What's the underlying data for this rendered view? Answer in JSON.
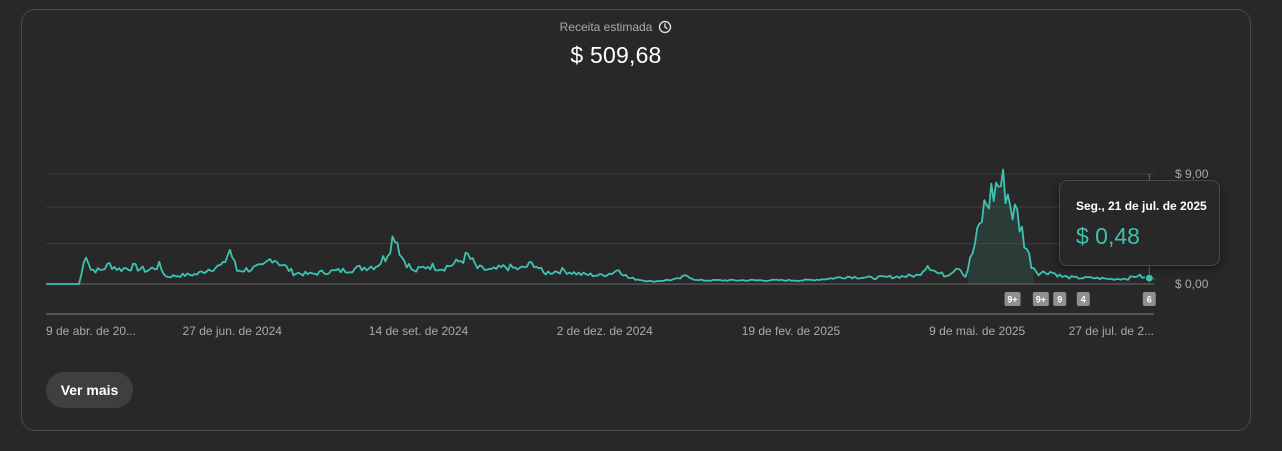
{
  "metric": {
    "label": "Receita estimada",
    "value": "$ 509,68",
    "icon": "clock-icon"
  },
  "tooltip": {
    "date": "Seg., 21 de jul. de 2025",
    "value": "$ 0,48"
  },
  "more_button": {
    "label": "Ver mais"
  },
  "colors": {
    "line": "#3ec2b0",
    "grid": "#3d3d3d",
    "axis": "#555555",
    "badge": "#8f8f8f"
  },
  "chart_data": {
    "type": "line",
    "title": "",
    "xlabel": "",
    "ylabel": "",
    "start_date": "2024-04-09",
    "end_date": "2025-07-23",
    "ylim": [
      0,
      9
    ],
    "grid": true,
    "y_tick_labels": [
      {
        "value": 9,
        "label": "$ 9,00"
      },
      {
        "value": 0,
        "label": "$ 0,00"
      }
    ],
    "x_tick_labels": [
      {
        "date": "2024-04-09",
        "label": "9 de abr. de 20..."
      },
      {
        "date": "2024-06-27",
        "label": "27 de jun. de 2024"
      },
      {
        "date": "2024-09-14",
        "label": "14 de set. de 2024"
      },
      {
        "date": "2024-12-02",
        "label": "2 de dez. de 2024"
      },
      {
        "date": "2025-02-19",
        "label": "19 de fev. de 2025"
      },
      {
        "date": "2025-05-09",
        "label": "9 de mai. de 2025"
      },
      {
        "date": "2025-07-27",
        "label": "27 de jul. de 2..."
      }
    ],
    "highlight": {
      "date": "2025-07-21",
      "value": 0.48
    },
    "series": [
      {
        "keyframes": [
          [
            "2024-04-09",
            0
          ],
          [
            "2024-04-23",
            0
          ],
          [
            "2024-04-24",
            0.8
          ],
          [
            "2024-04-26",
            2.6
          ],
          [
            "2024-04-28",
            1.2
          ],
          [
            "2024-05-02",
            1.1
          ],
          [
            "2024-05-06",
            1.6
          ],
          [
            "2024-05-10",
            1.2
          ],
          [
            "2024-05-16",
            1.4
          ],
          [
            "2024-05-22",
            1.1
          ],
          [
            "2024-05-27",
            1.5
          ],
          [
            "2024-05-30",
            0.6
          ],
          [
            "2024-06-05",
            0.7
          ],
          [
            "2024-06-12",
            0.8
          ],
          [
            "2024-06-18",
            1.3
          ],
          [
            "2024-06-23",
            1.5
          ],
          [
            "2024-06-26",
            2.8
          ],
          [
            "2024-06-29",
            1.1
          ],
          [
            "2024-07-04",
            1.2
          ],
          [
            "2024-07-10",
            1.4
          ],
          [
            "2024-07-14",
            2.2
          ],
          [
            "2024-07-18",
            1.6
          ],
          [
            "2024-07-23",
            0.9
          ],
          [
            "2024-07-30",
            0.8
          ],
          [
            "2024-08-06",
            1.0
          ],
          [
            "2024-08-13",
            1.1
          ],
          [
            "2024-08-20",
            1.3
          ],
          [
            "2024-08-27",
            1.5
          ],
          [
            "2024-08-31",
            2.2
          ],
          [
            "2024-09-04",
            4.2
          ],
          [
            "2024-09-07",
            2.2
          ],
          [
            "2024-09-12",
            1.0
          ],
          [
            "2024-09-18",
            1.5
          ],
          [
            "2024-09-24",
            1.3
          ],
          [
            "2024-09-30",
            1.7
          ],
          [
            "2024-10-05",
            2.3
          ],
          [
            "2024-10-09",
            1.3
          ],
          [
            "2024-10-15",
            1.1
          ],
          [
            "2024-10-21",
            1.4
          ],
          [
            "2024-10-27",
            1.2
          ],
          [
            "2024-11-02",
            1.7
          ],
          [
            "2024-11-06",
            0.9
          ],
          [
            "2024-11-14",
            1.1
          ],
          [
            "2024-11-22",
            0.8
          ],
          [
            "2024-11-30",
            0.7
          ],
          [
            "2024-12-05",
            0.9
          ],
          [
            "2024-12-08",
            1.2
          ],
          [
            "2024-12-12",
            0.5
          ],
          [
            "2024-12-22",
            0.2
          ],
          [
            "2025-01-02",
            0.4
          ],
          [
            "2025-01-06",
            0.7
          ],
          [
            "2025-01-10",
            0.3
          ],
          [
            "2025-01-25",
            0.3
          ],
          [
            "2025-02-10",
            0.3
          ],
          [
            "2025-02-25",
            0.3
          ],
          [
            "2025-03-05",
            0.4
          ],
          [
            "2025-03-15",
            0.6
          ],
          [
            "2025-03-25",
            0.5
          ],
          [
            "2025-04-05",
            0.6
          ],
          [
            "2025-04-14",
            0.7
          ],
          [
            "2025-04-18",
            1.6
          ],
          [
            "2025-04-22",
            0.9
          ],
          [
            "2025-04-26",
            0.7
          ],
          [
            "2025-05-01",
            1.5
          ],
          [
            "2025-05-04",
            0.6
          ],
          [
            "2025-05-08",
            3.2
          ],
          [
            "2025-05-10",
            4.6
          ],
          [
            "2025-05-12",
            6.2
          ],
          [
            "2025-05-15",
            7.3
          ],
          [
            "2025-05-18",
            8.2
          ],
          [
            "2025-05-21",
            8.0
          ],
          [
            "2025-05-24",
            6.0
          ],
          [
            "2025-05-26",
            5.6
          ],
          [
            "2025-05-29",
            3.6
          ],
          [
            "2025-06-01",
            1.6
          ],
          [
            "2025-06-04",
            0.9
          ],
          [
            "2025-06-09",
            1.0
          ],
          [
            "2025-06-14",
            0.6
          ],
          [
            "2025-06-20",
            0.5
          ],
          [
            "2025-06-27",
            0.5
          ],
          [
            "2025-07-05",
            0.4
          ],
          [
            "2025-07-12",
            0.45
          ],
          [
            "2025-07-16",
            0.7
          ],
          [
            "2025-07-19",
            0.5
          ],
          [
            "2025-07-21",
            0.48
          ],
          [
            "2025-07-23",
            0.45
          ]
        ]
      }
    ],
    "annotations": [
      {
        "date": "2025-05-24",
        "label": "9+"
      },
      {
        "date": "2025-06-05",
        "label": "9+"
      },
      {
        "date": "2025-06-13",
        "label": "9"
      },
      {
        "date": "2025-06-23",
        "label": "4"
      },
      {
        "date": "2025-07-21",
        "label": "6"
      }
    ]
  }
}
